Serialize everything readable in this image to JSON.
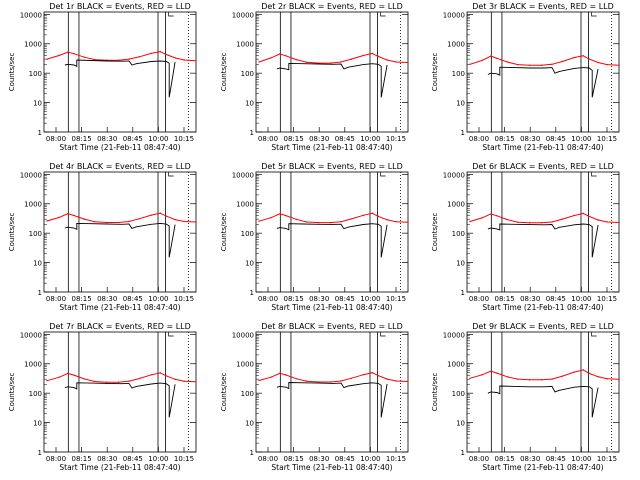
{
  "chart_data": [
    {
      "type": "line",
      "title": "Det 1r BLACK = Events, RED = LLD",
      "xlabel": "Start Time (21-Feb-11 08:47:40)",
      "ylabel": "Counts/sec",
      "x_ticks": [
        "08:00",
        "08:15",
        "08:30",
        "08:45",
        "10:00",
        "10:15"
      ],
      "y_ticks": [
        "1",
        "10",
        "100",
        "1000",
        "10000"
      ],
      "yscale": "log",
      "ylim": [
        1,
        12000
      ],
      "series": [
        {
          "color": "#ff0000",
          "x": [
            0.0,
            0.08,
            0.14,
            0.18,
            0.25,
            0.32,
            0.4,
            0.48,
            0.55,
            0.62,
            0.7,
            0.76,
            0.8,
            0.86,
            0.92,
            1.0
          ],
          "values": [
            300,
            400,
            520,
            460,
            350,
            290,
            275,
            275,
            300,
            360,
            470,
            540,
            430,
            330,
            280,
            265
          ]
        },
        {
          "color": "#000000",
          "x": [
            0.12,
            0.14,
            0.18,
            0.2,
            0.2,
            0.3,
            0.4,
            0.5,
            0.55,
            0.57,
            0.6,
            0.7,
            0.76,
            0.8,
            0.82,
            0.82,
            0.86
          ],
          "values": [
            190,
            200,
            190,
            170,
            280,
            270,
            260,
            255,
            260,
            190,
            210,
            250,
            260,
            250,
            220,
            15,
            240
          ]
        }
      ]
    },
    {
      "type": "line",
      "title": "Det 2r BLACK = Events, RED = LLD",
      "xlabel": "Start Time (21-Feb-11 08:47:40)",
      "ylabel": "Counts/sec",
      "x_ticks": [
        "08:00",
        "08:15",
        "08:30",
        "08:45",
        "10:00",
        "10:15"
      ],
      "y_ticks": [
        "1",
        "10",
        "100",
        "1000",
        "10000"
      ],
      "yscale": "log",
      "ylim": [
        1,
        12000
      ],
      "series": [
        {
          "color": "#ff0000",
          "x": [
            0.0,
            0.08,
            0.14,
            0.18,
            0.25,
            0.32,
            0.4,
            0.48,
            0.55,
            0.62,
            0.7,
            0.76,
            0.8,
            0.86,
            0.92,
            1.0
          ],
          "values": [
            240,
            330,
            450,
            390,
            290,
            235,
            220,
            220,
            240,
            300,
            400,
            470,
            370,
            280,
            240,
            230
          ]
        },
        {
          "color": "#000000",
          "x": [
            0.12,
            0.14,
            0.18,
            0.2,
            0.2,
            0.3,
            0.4,
            0.5,
            0.55,
            0.57,
            0.6,
            0.7,
            0.76,
            0.8,
            0.82,
            0.82,
            0.86
          ],
          "values": [
            140,
            150,
            140,
            130,
            215,
            210,
            205,
            200,
            205,
            140,
            160,
            195,
            210,
            200,
            170,
            15,
            190
          ]
        }
      ]
    },
    {
      "type": "line",
      "title": "Det 3r BLACK = Events, RED = LLD",
      "xlabel": "Start Time (21-Feb-11 08:47:40)",
      "ylabel": "Counts/sec",
      "x_ticks": [
        "08:00",
        "08:15",
        "08:30",
        "08:45",
        "10:00",
        "10:15"
      ],
      "y_ticks": [
        "1",
        "10",
        "100",
        "1000",
        "10000"
      ],
      "yscale": "log",
      "ylim": [
        1,
        12000
      ],
      "series": [
        {
          "color": "#ff0000",
          "x": [
            0.0,
            0.08,
            0.14,
            0.18,
            0.25,
            0.32,
            0.4,
            0.48,
            0.55,
            0.62,
            0.7,
            0.76,
            0.8,
            0.86,
            0.92,
            1.0
          ],
          "values": [
            200,
            270,
            380,
            320,
            240,
            195,
            185,
            185,
            200,
            250,
            340,
            390,
            300,
            230,
            195,
            185
          ]
        },
        {
          "color": "#000000",
          "x": [
            0.12,
            0.14,
            0.18,
            0.2,
            0.2,
            0.3,
            0.4,
            0.5,
            0.55,
            0.57,
            0.6,
            0.7,
            0.76,
            0.8,
            0.82,
            0.82,
            0.86
          ],
          "values": [
            90,
            100,
            95,
            85,
            160,
            155,
            150,
            150,
            155,
            100,
            115,
            145,
            155,
            150,
            125,
            15,
            140
          ]
        }
      ]
    },
    {
      "type": "line",
      "title": "Det 4r BLACK = Events, RED = LLD",
      "xlabel": "Start Time (21-Feb-11 08:47:40)",
      "ylabel": "Counts/sec",
      "x_ticks": [
        "08:00",
        "08:15",
        "08:30",
        "08:45",
        "10:00",
        "10:15"
      ],
      "y_ticks": [
        "1",
        "10",
        "100",
        "1000",
        "10000"
      ],
      "yscale": "log",
      "ylim": [
        1,
        12000
      ],
      "series": [
        {
          "color": "#ff0000",
          "x": [
            0.0,
            0.08,
            0.14,
            0.18,
            0.25,
            0.32,
            0.4,
            0.48,
            0.55,
            0.62,
            0.7,
            0.76,
            0.8,
            0.86,
            0.92,
            1.0
          ],
          "values": [
            260,
            340,
            460,
            400,
            300,
            245,
            230,
            230,
            250,
            310,
            410,
            480,
            380,
            290,
            250,
            240
          ]
        },
        {
          "color": "#000000",
          "x": [
            0.12,
            0.14,
            0.18,
            0.2,
            0.2,
            0.3,
            0.4,
            0.5,
            0.55,
            0.57,
            0.6,
            0.7,
            0.76,
            0.8,
            0.82,
            0.82,
            0.86
          ],
          "values": [
            150,
            160,
            150,
            135,
            215,
            210,
            205,
            200,
            205,
            145,
            165,
            200,
            215,
            205,
            175,
            15,
            195
          ]
        }
      ]
    },
    {
      "type": "line",
      "title": "Det 5r BLACK = Events, RED = LLD",
      "xlabel": "Start Time (21-Feb-11 08:47:40)",
      "ylabel": "Counts/sec",
      "x_ticks": [
        "08:00",
        "08:15",
        "08:30",
        "08:45",
        "10:00",
        "10:15"
      ],
      "y_ticks": [
        "1",
        "10",
        "100",
        "1000",
        "10000"
      ],
      "yscale": "log",
      "ylim": [
        1,
        12000
      ],
      "series": [
        {
          "color": "#ff0000",
          "x": [
            0.0,
            0.08,
            0.14,
            0.18,
            0.25,
            0.32,
            0.4,
            0.48,
            0.55,
            0.62,
            0.7,
            0.76,
            0.8,
            0.86,
            0.92,
            1.0
          ],
          "values": [
            255,
            335,
            455,
            395,
            295,
            240,
            228,
            228,
            245,
            305,
            405,
            475,
            375,
            285,
            245,
            235
          ]
        },
        {
          "color": "#000000",
          "x": [
            0.12,
            0.14,
            0.18,
            0.2,
            0.2,
            0.3,
            0.4,
            0.5,
            0.55,
            0.57,
            0.6,
            0.7,
            0.76,
            0.8,
            0.82,
            0.82,
            0.86
          ],
          "values": [
            145,
            155,
            145,
            130,
            210,
            205,
            200,
            198,
            202,
            142,
            162,
            197,
            210,
            200,
            172,
            15,
            192
          ]
        }
      ]
    },
    {
      "type": "line",
      "title": "Det 6r BLACK = Events, RED = LLD",
      "xlabel": "Start Time (21-Feb-11 08:47:40)",
      "ylabel": "Counts/sec",
      "x_ticks": [
        "08:00",
        "08:15",
        "08:30",
        "08:45",
        "10:00",
        "10:15"
      ],
      "y_ticks": [
        "1",
        "10",
        "100",
        "1000",
        "10000"
      ],
      "yscale": "log",
      "ylim": [
        1,
        12000
      ],
      "series": [
        {
          "color": "#ff0000",
          "x": [
            0.0,
            0.08,
            0.14,
            0.18,
            0.25,
            0.32,
            0.4,
            0.48,
            0.55,
            0.62,
            0.7,
            0.76,
            0.8,
            0.86,
            0.92,
            1.0
          ],
          "values": [
            250,
            330,
            450,
            390,
            290,
            235,
            225,
            225,
            240,
            300,
            400,
            470,
            370,
            280,
            240,
            230
          ]
        },
        {
          "color": "#000000",
          "x": [
            0.12,
            0.14,
            0.18,
            0.2,
            0.2,
            0.3,
            0.4,
            0.5,
            0.55,
            0.57,
            0.6,
            0.7,
            0.76,
            0.8,
            0.82,
            0.82,
            0.86
          ],
          "values": [
            140,
            150,
            140,
            128,
            205,
            200,
            195,
            193,
            197,
            138,
            158,
            192,
            205,
            195,
            168,
            15,
            188
          ]
        }
      ]
    },
    {
      "type": "line",
      "title": "Det 7r BLACK = Events, RED = LLD",
      "xlabel": "Start Time (21-Feb-11 08:47:40)",
      "ylabel": "Counts/sec",
      "x_ticks": [
        "08:00",
        "08:15",
        "08:30",
        "08:45",
        "10:00",
        "10:15"
      ],
      "y_ticks": [
        "1",
        "10",
        "100",
        "1000",
        "10000"
      ],
      "yscale": "log",
      "ylim": [
        1,
        12000
      ],
      "series": [
        {
          "color": "#ff0000",
          "x": [
            0.0,
            0.08,
            0.14,
            0.18,
            0.25,
            0.32,
            0.4,
            0.48,
            0.55,
            0.62,
            0.7,
            0.76,
            0.8,
            0.86,
            0.92,
            1.0
          ],
          "values": [
            265,
            345,
            470,
            410,
            305,
            250,
            235,
            235,
            255,
            315,
            420,
            490,
            390,
            295,
            255,
            245
          ]
        },
        {
          "color": "#000000",
          "x": [
            0.12,
            0.14,
            0.18,
            0.2,
            0.2,
            0.3,
            0.4,
            0.5,
            0.55,
            0.57,
            0.6,
            0.7,
            0.76,
            0.8,
            0.82,
            0.82,
            0.86
          ],
          "values": [
            155,
            165,
            155,
            140,
            225,
            220,
            215,
            210,
            215,
            150,
            170,
            205,
            220,
            210,
            180,
            15,
            200
          ]
        }
      ]
    },
    {
      "type": "line",
      "title": "Det 8r BLACK = Events, RED = LLD",
      "xlabel": "Start Time (21-Feb-11 08:47:40)",
      "ylabel": "Counts/sec",
      "x_ticks": [
        "08:00",
        "08:15",
        "08:30",
        "08:45",
        "10:00",
        "10:15"
      ],
      "y_ticks": [
        "1",
        "10",
        "100",
        "1000",
        "10000"
      ],
      "yscale": "log",
      "ylim": [
        1,
        12000
      ],
      "series": [
        {
          "color": "#ff0000",
          "x": [
            0.0,
            0.08,
            0.14,
            0.18,
            0.25,
            0.32,
            0.4,
            0.48,
            0.55,
            0.62,
            0.7,
            0.76,
            0.8,
            0.86,
            0.92,
            1.0
          ],
          "values": [
            270,
            350,
            475,
            415,
            310,
            255,
            240,
            240,
            260,
            320,
            425,
            495,
            395,
            300,
            260,
            250
          ]
        },
        {
          "color": "#000000",
          "x": [
            0.12,
            0.14,
            0.18,
            0.2,
            0.2,
            0.3,
            0.4,
            0.5,
            0.55,
            0.57,
            0.6,
            0.7,
            0.76,
            0.8,
            0.82,
            0.82,
            0.86
          ],
          "values": [
            160,
            170,
            160,
            145,
            230,
            225,
            220,
            215,
            220,
            155,
            175,
            210,
            225,
            215,
            185,
            15,
            205
          ]
        }
      ]
    },
    {
      "type": "line",
      "title": "Det 9r BLACK = Events, RED = LLD",
      "xlabel": "Start Time (21-Feb-11 08:47:40)",
      "ylabel": "Counts/sec",
      "x_ticks": [
        "08:00",
        "08:15",
        "08:30",
        "08:45",
        "10:00",
        "10:15"
      ],
      "y_ticks": [
        "1",
        "10",
        "100",
        "1000",
        "10000"
      ],
      "yscale": "log",
      "ylim": [
        1,
        12000
      ],
      "series": [
        {
          "color": "#ff0000",
          "x": [
            0.0,
            0.08,
            0.14,
            0.18,
            0.25,
            0.32,
            0.4,
            0.48,
            0.55,
            0.62,
            0.7,
            0.76,
            0.8,
            0.86,
            0.92,
            1.0
          ],
          "values": [
            320,
            420,
            560,
            480,
            360,
            300,
            285,
            285,
            300,
            380,
            520,
            620,
            470,
            360,
            310,
            295
          ]
        },
        {
          "color": "#000000",
          "x": [
            0.12,
            0.14,
            0.18,
            0.2,
            0.2,
            0.3,
            0.4,
            0.5,
            0.55,
            0.57,
            0.6,
            0.7,
            0.76,
            0.8,
            0.82,
            0.82,
            0.86
          ],
          "values": [
            100,
            110,
            105,
            95,
            175,
            170,
            165,
            165,
            170,
            110,
            125,
            160,
            170,
            165,
            140,
            15,
            155
          ]
        }
      ]
    }
  ]
}
